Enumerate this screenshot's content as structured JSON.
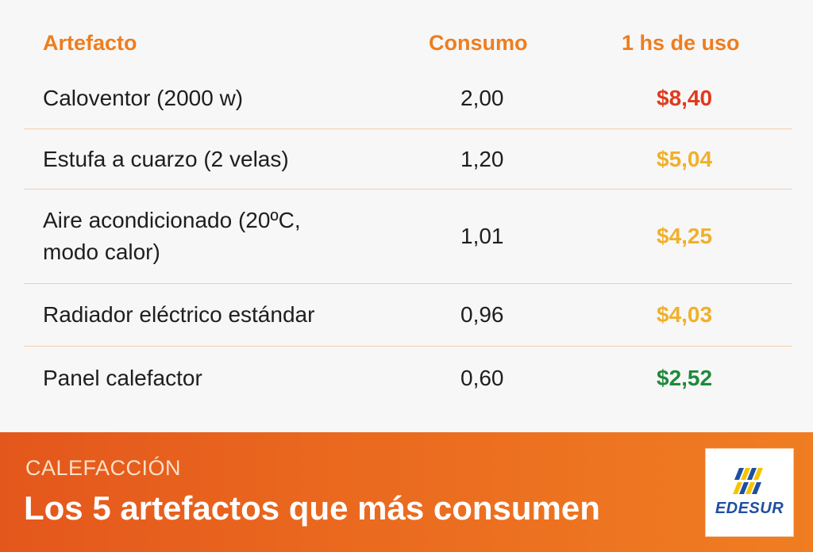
{
  "table": {
    "headers": {
      "name": "Artefacto",
      "consumption": "Consumo",
      "cost": "1 hs de uso"
    },
    "rows": [
      {
        "name": "Caloventor (2000 w)",
        "consumption": "2,00",
        "cost": "$8,40",
        "cost_color": "#e03a1f"
      },
      {
        "name": "Estufa a cuarzo (2 velas)",
        "consumption": "1,20",
        "cost": "$5,04",
        "cost_color": "#f0b02a"
      },
      {
        "name": "Aire acondicionado (20ºC, modo calor)",
        "consumption": "1,01",
        "cost": "$4,25",
        "cost_color": "#f0b02a"
      },
      {
        "name": "Radiador eléctrico estándar",
        "consumption": "0,96",
        "cost": "$4,03",
        "cost_color": "#f0b02a"
      },
      {
        "name": "Panel calefactor",
        "consumption": "0,60",
        "cost": "$2,52",
        "cost_color": "#1e8a3c"
      }
    ]
  },
  "footer": {
    "kicker": "CALEFACCIÓN",
    "title": "Los 5 artefactos que más consumen"
  },
  "logo": {
    "text": "EDESUR",
    "icon": "edesur-logo-icon",
    "color": "#1f4fa0",
    "accent": "#f5c400"
  },
  "colors": {
    "header": "#ef7d1e",
    "divider": "#f2cfae",
    "footer_from": "#e4571c",
    "footer_to": "#f07d22"
  }
}
